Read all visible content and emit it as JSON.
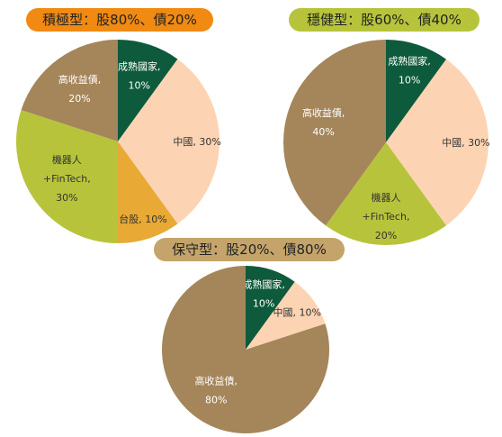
{
  "chart_data": [
    {
      "type": "pie",
      "title": "積極型：股80%、債20%",
      "title_color": "#F08A12",
      "slices": [
        {
          "label": "成熟國家,",
          "value": 10,
          "value_text": "10%",
          "color": "#0E5A3C",
          "text_color": "#ffffff"
        },
        {
          "label": "中國, 30%",
          "value": 30,
          "value_text": "",
          "color": "#FDD4B3",
          "text_color": "#333333"
        },
        {
          "label": "台股, 10%",
          "value": 10,
          "value_text": "",
          "color": "#E8A935",
          "text_color": "#333333"
        },
        {
          "label": "機器人",
          "label2": "+FinTech,",
          "value": 30,
          "value_text": "30%",
          "color": "#B7C43B",
          "text_color": "#333333"
        },
        {
          "label": "高收益債,",
          "value": 20,
          "value_text": "20%",
          "color": "#A5855A",
          "text_color": "#ffffff"
        }
      ]
    },
    {
      "type": "pie",
      "title": "穩健型：股60%、債40%",
      "title_color": "#B7C43B",
      "slices": [
        {
          "label": "成熟國家,",
          "value": 10,
          "value_text": "10%",
          "color": "#0E5A3C",
          "text_color": "#ffffff"
        },
        {
          "label": "中國, 30%",
          "value": 30,
          "value_text": "",
          "color": "#FDD4B3",
          "text_color": "#333333"
        },
        {
          "label": "機器人",
          "label2": "+FinTech,",
          "value": 20,
          "value_text": "20%",
          "color": "#B7C43B",
          "text_color": "#333333"
        },
        {
          "label": "高收益債,",
          "value": 40,
          "value_text": "40%",
          "color": "#A5855A",
          "text_color": "#ffffff"
        }
      ]
    },
    {
      "type": "pie",
      "title": "保守型：股20%、債80%",
      "title_color": "#C4A46A",
      "slices": [
        {
          "label": "成熟國家,",
          "value": 10,
          "value_text": "10%",
          "color": "#0E5A3C",
          "text_color": "#ffffff"
        },
        {
          "label": "中國, 10%",
          "value": 10,
          "value_text": "",
          "color": "#FDD4B3",
          "text_color": "#333333"
        },
        {
          "label": "高收益債,",
          "value": 80,
          "value_text": "80%",
          "color": "#A5855A",
          "text_color": "#ffffff"
        }
      ]
    }
  ]
}
